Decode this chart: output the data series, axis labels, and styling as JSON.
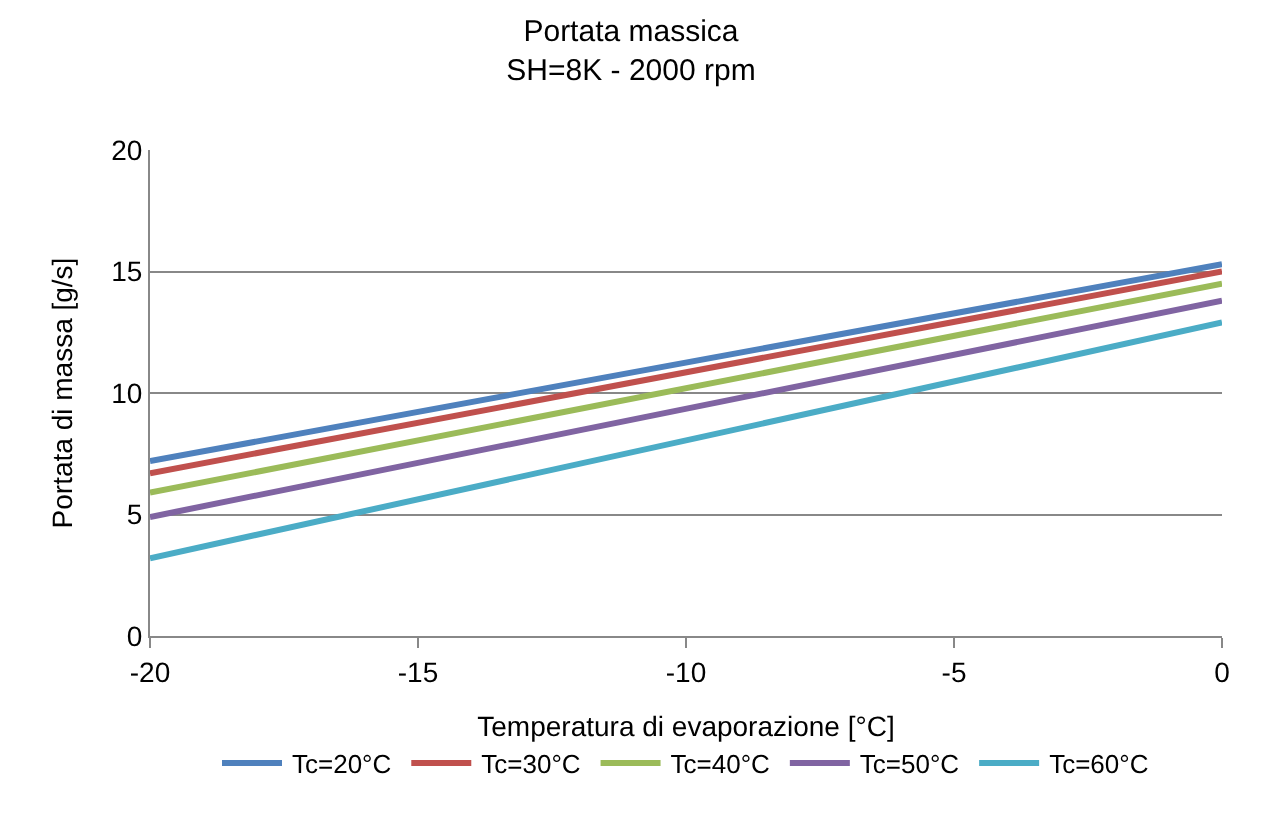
{
  "chart_data": {
    "type": "line",
    "title": "Portata massica",
    "subtitle": "SH=8K - 2000 rpm",
    "xlabel": "Temperatura di evaporazione [°C]",
    "ylabel": "Portata di massa [g/s]",
    "x": [
      -20,
      0
    ],
    "series": [
      {
        "name": "Tc=20°C",
        "color": "#4f81bd",
        "values": [
          7.2,
          15.3
        ]
      },
      {
        "name": "Tc=30°C",
        "color": "#c0504d",
        "values": [
          6.7,
          15.0
        ]
      },
      {
        "name": "Tc=40°C",
        "color": "#9bbb59",
        "values": [
          5.9,
          14.5
        ]
      },
      {
        "name": "Tc=50°C",
        "color": "#8064a2",
        "values": [
          4.9,
          13.8
        ]
      },
      {
        "name": "Tc=60°C",
        "color": "#4bacc6",
        "values": [
          3.2,
          12.9
        ]
      }
    ],
    "xlim": [
      -20,
      0
    ],
    "xticks": [
      -20,
      -15,
      -10,
      -5,
      0
    ],
    "ylim": [
      0,
      20
    ],
    "yticks": [
      0,
      5,
      10,
      15,
      20
    ],
    "grid": "y",
    "legend": "bottom",
    "marker": "none",
    "line_style": "solid"
  }
}
